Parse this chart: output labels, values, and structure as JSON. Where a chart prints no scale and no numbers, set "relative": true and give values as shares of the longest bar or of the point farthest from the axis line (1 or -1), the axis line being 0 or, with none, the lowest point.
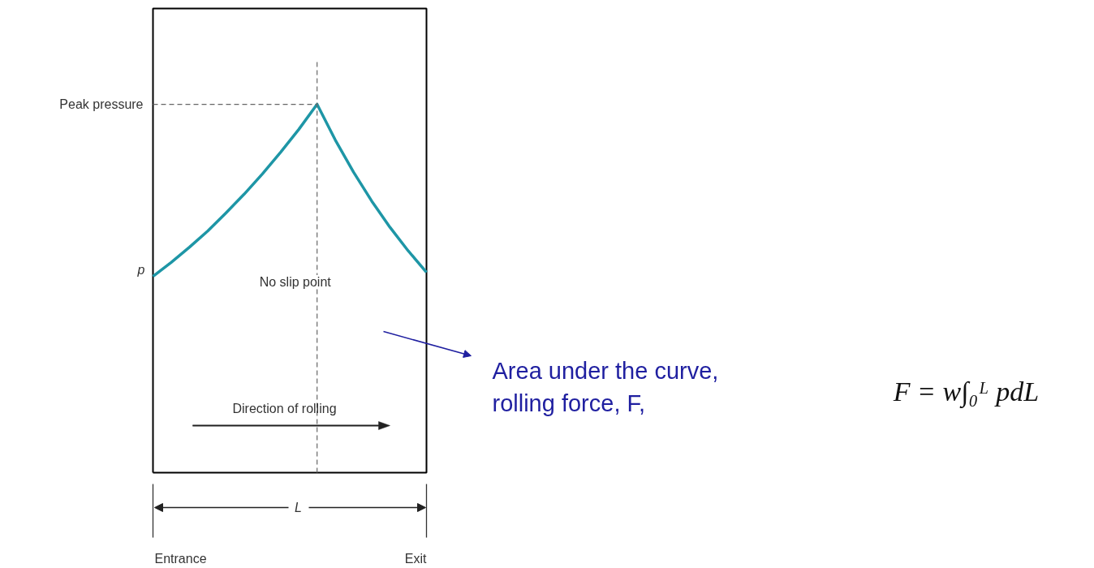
{
  "chart_data": {
    "type": "line",
    "relative": true,
    "color": "#1e96a6",
    "categories": [
      null,
      null,
      null,
      null,
      null,
      null,
      null,
      null,
      null,
      null,
      null,
      null,
      null,
      null,
      null,
      null
    ],
    "values": [
      0.533,
      0.571,
      0.612,
      0.656,
      0.705,
      0.756,
      0.811,
      0.87,
      0.932,
      1,
      0.903,
      0.816,
      0.737,
      0.666,
      0.602,
      0.544
    ],
    "annotations": [
      "Peak pressure",
      "p",
      "Direction of rolling",
      "L",
      "Entrance",
      "Exit",
      "Area under the curve,\nrolling force, F,",
      "F = w∫₀ᴸ pdL",
      "No slip point"
    ]
  }
}
